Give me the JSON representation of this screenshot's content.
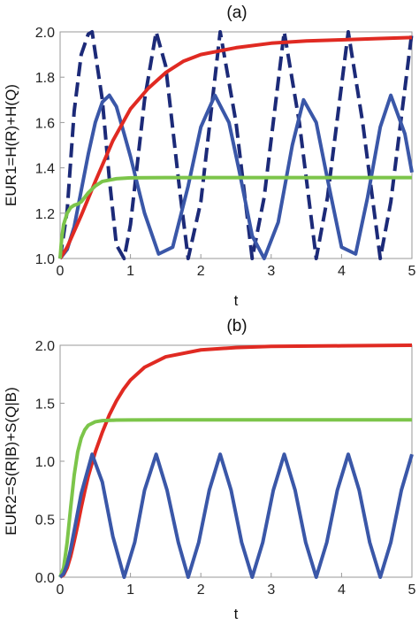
{
  "chart_data": [
    {
      "type": "line",
      "panel_label": "(a)",
      "xlabel": "t",
      "ylabel": "EUR1=H(R)+H(Q)",
      "xlim": [
        0,
        5
      ],
      "ylim": [
        1.0,
        2.0
      ],
      "xticks": [
        "0",
        "1",
        "2",
        "3",
        "4",
        "5"
      ],
      "yticks": [
        "1.0",
        "1.2",
        "1.4",
        "1.6",
        "1.8",
        "2.0"
      ],
      "grid": false,
      "series": [
        {
          "color": "#1c2a78",
          "style": "dashed",
          "x": [
            0.0,
            0.1,
            0.2,
            0.3,
            0.4,
            0.455,
            0.6,
            0.7,
            0.8,
            0.91,
            1.0,
            1.2,
            1.365,
            1.5,
            1.7,
            1.82,
            2.0,
            2.275,
            2.5,
            2.73,
            2.9,
            3.185,
            3.4,
            3.64,
            3.8,
            4.095,
            4.3,
            4.55,
            4.7,
            5.0
          ],
          "y": [
            1.0,
            1.21,
            1.65,
            1.9,
            1.99,
            2.0,
            1.7,
            1.35,
            1.06,
            1.0,
            1.15,
            1.7,
            2.0,
            1.85,
            1.3,
            1.0,
            1.25,
            2.0,
            1.6,
            1.0,
            1.27,
            2.0,
            1.6,
            1.0,
            1.27,
            2.0,
            1.6,
            1.0,
            1.25,
            2.0
          ]
        },
        {
          "color": "#3a57a8",
          "style": "solid",
          "x": [
            0.0,
            0.1,
            0.2,
            0.3,
            0.4,
            0.5,
            0.6,
            0.7,
            0.8,
            0.91,
            1.0,
            1.2,
            1.4,
            1.6,
            1.82,
            2.0,
            2.2,
            2.4,
            2.55,
            2.73,
            2.9,
            3.1,
            3.3,
            3.46,
            3.64,
            3.8,
            4.0,
            4.2,
            4.37,
            4.55,
            4.7,
            4.9,
            5.0
          ],
          "y": [
            1.0,
            1.04,
            1.14,
            1.3,
            1.46,
            1.6,
            1.69,
            1.72,
            1.67,
            1.55,
            1.45,
            1.2,
            1.02,
            1.05,
            1.32,
            1.58,
            1.72,
            1.6,
            1.38,
            1.1,
            1.0,
            1.16,
            1.5,
            1.7,
            1.6,
            1.35,
            1.05,
            1.02,
            1.27,
            1.58,
            1.72,
            1.55,
            1.38
          ]
        },
        {
          "color": "#e02a22",
          "style": "solid",
          "x": [
            0.0,
            0.1,
            0.2,
            0.3,
            0.5,
            0.75,
            1.0,
            1.25,
            1.5,
            1.75,
            2.0,
            2.5,
            3.0,
            3.5,
            4.0,
            4.5,
            5.0
          ],
          "y": [
            1.0,
            1.05,
            1.12,
            1.19,
            1.34,
            1.52,
            1.66,
            1.75,
            1.82,
            1.87,
            1.9,
            1.93,
            1.95,
            1.96,
            1.965,
            1.97,
            1.975
          ]
        },
        {
          "color": "#7cc54a",
          "style": "solid",
          "x": [
            0.0,
            0.02,
            0.05,
            0.1,
            0.15,
            0.2,
            0.25,
            0.3,
            0.4,
            0.5,
            0.6,
            0.8,
            1.0,
            1.5,
            2.0,
            3.0,
            4.0,
            5.0
          ],
          "y": [
            1.0,
            1.08,
            1.15,
            1.2,
            1.225,
            1.235,
            1.24,
            1.25,
            1.29,
            1.32,
            1.34,
            1.352,
            1.356,
            1.357,
            1.357,
            1.357,
            1.357,
            1.357
          ]
        }
      ]
    },
    {
      "type": "line",
      "panel_label": "(b)",
      "xlabel": "t",
      "ylabel": "EUR2=S(R|B)+S(Q|B)",
      "xlim": [
        0,
        5
      ],
      "ylim": [
        0.0,
        2.0
      ],
      "xticks": [
        "0",
        "1",
        "2",
        "3",
        "4",
        "5"
      ],
      "yticks": [
        "0.0",
        "0.5",
        "1.0",
        "1.5",
        "2.0"
      ],
      "grid": false,
      "series": [
        {
          "color": "#e02a22",
          "style": "solid",
          "x": [
            0.0,
            0.05,
            0.1,
            0.15,
            0.2,
            0.25,
            0.3,
            0.35,
            0.4,
            0.5,
            0.6,
            0.7,
            0.8,
            0.9,
            1.0,
            1.2,
            1.5,
            2.0,
            2.5,
            3.0,
            4.0,
            5.0
          ],
          "y": [
            0.0,
            0.02,
            0.08,
            0.18,
            0.31,
            0.45,
            0.6,
            0.74,
            0.87,
            1.08,
            1.25,
            1.4,
            1.52,
            1.62,
            1.7,
            1.81,
            1.9,
            1.96,
            1.98,
            1.99,
            1.995,
            2.0
          ]
        },
        {
          "color": "#7cc54a",
          "style": "solid",
          "x": [
            0.0,
            0.05,
            0.1,
            0.15,
            0.2,
            0.25,
            0.3,
            0.35,
            0.4,
            0.5,
            0.6,
            0.8,
            1.0,
            1.5,
            2.0,
            3.0,
            4.0,
            5.0
          ],
          "y": [
            0.0,
            0.08,
            0.3,
            0.6,
            0.88,
            1.08,
            1.2,
            1.27,
            1.31,
            1.34,
            1.35,
            1.355,
            1.356,
            1.357,
            1.357,
            1.357,
            1.357,
            1.357
          ]
        },
        {
          "color": "#3a57a8",
          "style": "solid",
          "x": [
            0.0,
            0.05,
            0.1,
            0.15,
            0.2,
            0.3,
            0.455,
            0.6,
            0.75,
            0.91,
            1.06,
            1.2,
            1.365,
            1.52,
            1.68,
            1.82,
            1.97,
            2.12,
            2.275,
            2.43,
            2.58,
            2.73,
            2.88,
            3.03,
            3.185,
            3.34,
            3.49,
            3.64,
            3.79,
            3.94,
            4.095,
            4.25,
            4.4,
            4.55,
            4.7,
            4.85,
            5.0
          ],
          "y": [
            0.0,
            0.03,
            0.11,
            0.24,
            0.4,
            0.72,
            1.06,
            0.82,
            0.35,
            0.0,
            0.3,
            0.75,
            1.06,
            0.75,
            0.3,
            0.0,
            0.3,
            0.75,
            1.06,
            0.75,
            0.3,
            0.0,
            0.3,
            0.75,
            1.06,
            0.75,
            0.3,
            0.0,
            0.3,
            0.75,
            1.06,
            0.75,
            0.3,
            0.0,
            0.3,
            0.75,
            1.06
          ]
        }
      ]
    }
  ]
}
